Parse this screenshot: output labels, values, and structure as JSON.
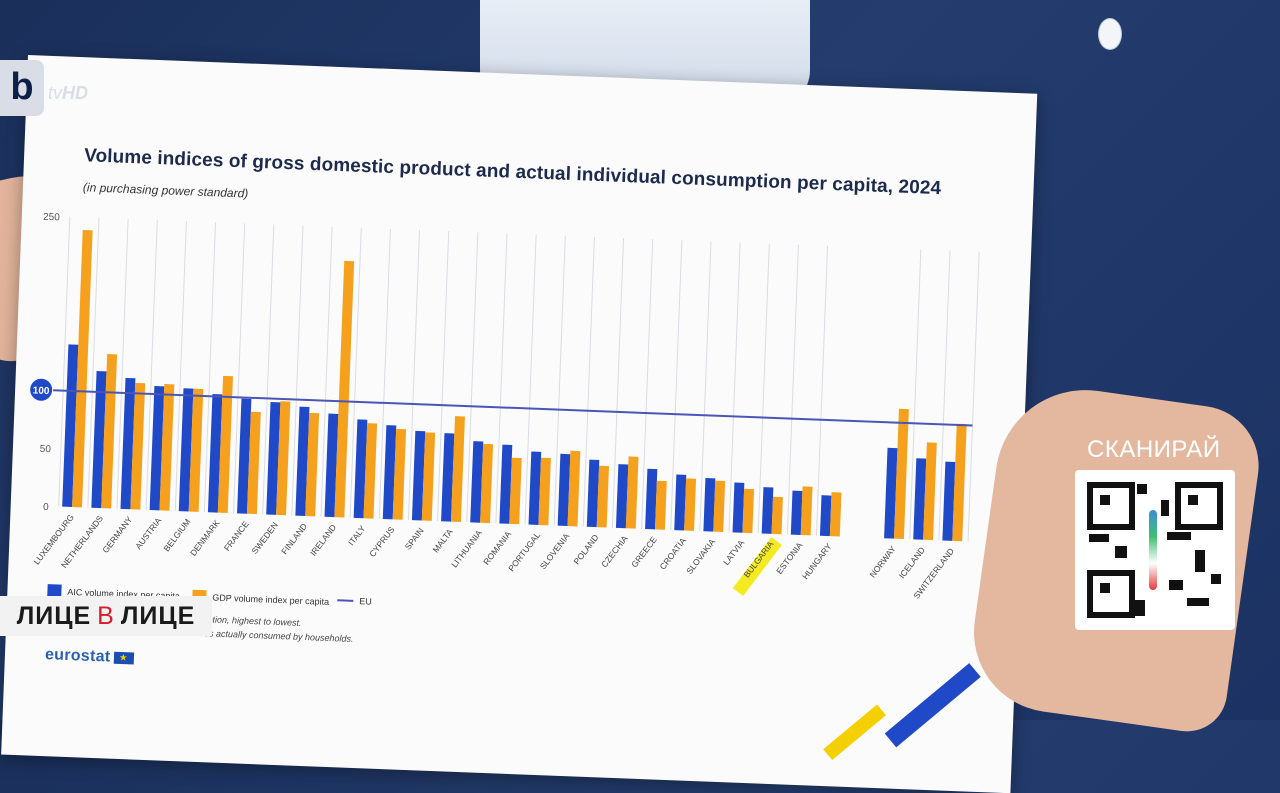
{
  "broadcast": {
    "channel_logo_letter": "b",
    "channel_logo_tv": "tv",
    "channel_logo_hd": "HD",
    "show_name": [
      "ЛИЦЕ",
      "В",
      "ЛИЦЕ"
    ],
    "qr_label": "СКАНИРАЙ"
  },
  "document": {
    "source_logo": "eurostat",
    "notes": [
      "dual consumption, highest to lowest.",
      "s and services actually consumed by households."
    ]
  },
  "chart_data": {
    "type": "bar",
    "title": "Volume indices of gross domestic product and actual individual consumption per capita, 2024",
    "subtitle": "(in purchasing power standard)",
    "categories": [
      "LUXEMBOURG",
      "NETHERLANDS",
      "GERMANY",
      "AUSTRIA",
      "BELGIUM",
      "DENMARK",
      "FRANCE",
      "SWEDEN",
      "FINLAND",
      "IRELAND",
      "ITALY",
      "CYPRUS",
      "SPAIN",
      "MALTA",
      "LITHUANIA",
      "ROMANIA",
      "PORTUGAL",
      "SLOVENIA",
      "POLAND",
      "CZECHIA",
      "GREECE",
      "CROATIA",
      "SLOVAKIA",
      "LATVIA",
      "BULGARIA",
      "ESTONIA",
      "HUNGARY",
      "NORWAY",
      "ICELAND",
      "SWITZERLAND"
    ],
    "highlighted_category": "BULGARIA",
    "series": [
      {
        "name": "AIC volume index per capita",
        "color": "#1f49c7",
        "values": [
          140,
          118,
          113,
          107,
          106,
          102,
          99,
          97,
          94,
          89,
          85,
          81,
          77,
          76,
          70,
          68,
          63,
          62,
          58,
          55,
          52,
          48,
          46,
          43,
          40,
          38,
          35,
          78,
          70,
          68
        ]
      },
      {
        "name": "GDP volume index per capita",
        "color": "#f5a11d",
        "values": [
          239,
          133,
          109,
          109,
          106,
          118,
          88,
          98,
          89,
          221,
          82,
          78,
          76,
          91,
          68,
          57,
          58,
          65,
          53,
          62,
          42,
          45,
          44,
          38,
          32,
          42,
          38,
          112,
          84,
          101
        ]
      }
    ],
    "reference_lines": [
      {
        "name": "EU",
        "color": "#4a55b8",
        "value": 100
      }
    ],
    "ylim": [
      0,
      250
    ],
    "yticks": [
      0,
      50,
      100,
      150,
      200,
      250
    ],
    "ytick_labels": [
      "0",
      "50",
      "100",
      "",
      "",
      "250"
    ],
    "xlabel": "",
    "ylabel": "",
    "grid": "vertical",
    "legend_placement": "bottom"
  }
}
